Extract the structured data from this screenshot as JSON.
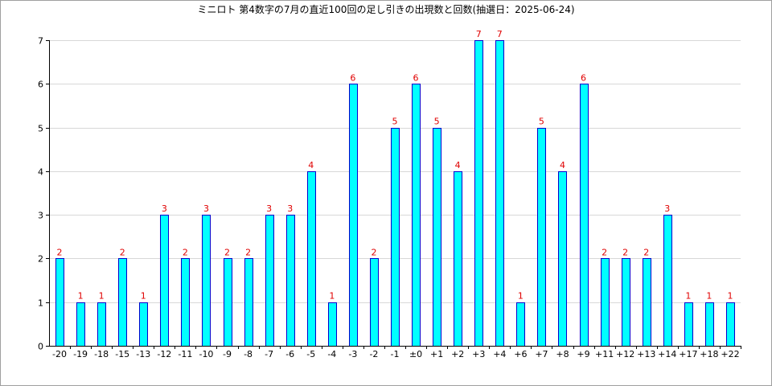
{
  "chart_data": {
    "type": "bar",
    "title": "ミニロト 第4数字の7月の直近100回の足し引きの出現数と回数(抽選日：2025-06-24)",
    "categories": [
      "-20",
      "-19",
      "-18",
      "-15",
      "-13",
      "-12",
      "-11",
      "-10",
      "-9",
      "-8",
      "-7",
      "-6",
      "-5",
      "-4",
      "-3",
      "-2",
      "-1",
      "±0",
      "+1",
      "+2",
      "+3",
      "+4",
      "+6",
      "+7",
      "+8",
      "+9",
      "+11",
      "+12",
      "+13",
      "+14",
      "+17",
      "+18",
      "+22"
    ],
    "values": [
      2,
      1,
      1,
      2,
      1,
      3,
      2,
      3,
      2,
      2,
      3,
      3,
      4,
      1,
      6,
      2,
      5,
      6,
      5,
      4,
      7,
      7,
      1,
      5,
      4,
      6,
      2,
      2,
      2,
      3,
      1,
      1,
      1
    ],
    "ylim": [
      0,
      7
    ],
    "yticks": [
      0,
      1,
      2,
      3,
      4,
      5,
      6,
      7
    ],
    "xlabel": "",
    "ylabel": "",
    "grid": true,
    "colors": {
      "bar_fill": "#00ffff",
      "bar_stroke": "#0000cc",
      "data_label": "#e00000"
    }
  }
}
